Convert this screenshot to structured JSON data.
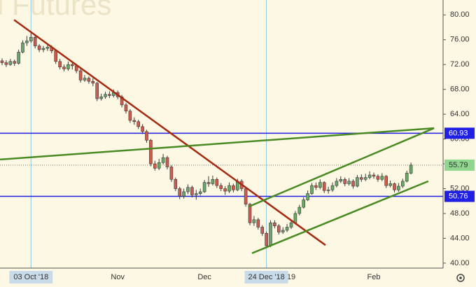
{
  "chart_data": {
    "type": "candlestick",
    "title": "l Futures",
    "categories": [
      null,
      null,
      null,
      null,
      null,
      null,
      null,
      "03 Oct '18",
      null,
      null,
      null,
      null,
      null,
      null,
      null,
      null,
      null,
      null,
      null,
      null,
      null,
      null,
      null,
      null,
      null,
      null,
      null,
      null,
      "Nov",
      null,
      null,
      null,
      null,
      null,
      null,
      null,
      null,
      null,
      null,
      null,
      null,
      null,
      null,
      null,
      null,
      null,
      null,
      null,
      null,
      "Dec",
      null,
      null,
      null,
      null,
      null,
      null,
      null,
      null,
      null,
      null,
      null,
      null,
      null,
      null,
      "24 Dec '18",
      null,
      null,
      null,
      null,
      null,
      "19",
      null,
      null,
      null,
      null,
      null,
      null,
      null,
      null,
      null,
      null,
      null,
      null,
      null,
      null,
      null,
      null,
      null,
      null,
      null,
      "Feb",
      null,
      null,
      null,
      null,
      null,
      null,
      null,
      null,
      null
    ],
    "open": [
      72.6,
      72.3,
      72.0,
      72.5,
      72.2,
      74.0,
      75.5,
      75.8,
      76.4,
      75.0,
      74.4,
      74.6,
      74.8,
      74.2,
      72.5,
      71.6,
      71.3,
      72.0,
      71.8,
      71.0,
      69.5,
      69.8,
      69.3,
      69.0,
      66.5,
      66.8,
      67.2,
      67.0,
      67.5,
      66.8,
      65.5,
      64.5,
      63.0,
      62.8,
      62.0,
      61.2,
      59.8,
      56.0,
      55.3,
      56.2,
      57.0,
      55.5,
      53.5,
      52.0,
      50.8,
      51.5,
      52.2,
      51.0,
      51.2,
      51.5,
      53.0,
      52.8,
      53.5,
      52.5,
      52.0,
      51.6,
      52.5,
      51.8,
      53.2,
      52.0,
      49.5,
      46.5,
      47.0,
      45.8,
      44.8,
      42.8,
      46.5,
      46.0,
      45.0,
      45.3,
      45.8,
      46.5,
      48.0,
      49.0,
      50.2,
      51.2,
      52.5,
      52.2,
      53.0,
      51.7,
      51.8,
      52.5,
      53.2,
      53.5,
      52.8,
      53.2,
      52.4,
      53.8,
      53.5,
      53.8,
      54.2,
      54.0,
      53.5,
      54.0,
      52.5,
      52.8,
      51.8,
      52.4,
      53.2,
      54.5
    ],
    "high": [
      73.0,
      72.7,
      72.9,
      72.8,
      74.4,
      75.9,
      76.6,
      77.3,
      76.6,
      75.3,
      75.0,
      75.4,
      75.1,
      74.4,
      72.9,
      72.0,
      72.5,
      72.4,
      72.1,
      71.3,
      70.3,
      70.1,
      69.8,
      69.2,
      67.3,
      67.6,
      67.7,
      68.0,
      67.8,
      67.1,
      65.8,
      64.8,
      63.5,
      63.1,
      62.4,
      61.5,
      60.0,
      56.5,
      56.8,
      57.6,
      57.3,
      55.8,
      53.8,
      52.3,
      52.0,
      52.7,
      52.5,
      51.8,
      52.0,
      53.4,
      54.0,
      54.1,
      53.8,
      52.9,
      52.4,
      53.0,
      52.8,
      53.6,
      53.5,
      52.2,
      49.7,
      47.6,
      47.3,
      46.1,
      45.1,
      46.9,
      46.9,
      46.3,
      45.8,
      46.3,
      47.0,
      48.4,
      49.4,
      50.6,
      51.7,
      52.9,
      53.0,
      53.5,
      53.2,
      52.3,
      53.0,
      53.7,
      54.0,
      53.8,
      53.7,
      53.5,
      54.2,
      54.3,
      54.4,
      54.8,
      54.6,
      54.3,
      54.5,
      54.2,
      53.3,
      53.0,
      52.9,
      53.6,
      54.9,
      56.2
    ],
    "low": [
      71.9,
      71.6,
      71.8,
      71.8,
      72.0,
      73.8,
      75.0,
      75.5,
      74.6,
      74.0,
      74.0,
      74.2,
      73.8,
      72.1,
      71.2,
      70.9,
      71.0,
      71.2,
      70.6,
      69.1,
      69.2,
      68.9,
      68.5,
      66.1,
      66.2,
      66.5,
      66.6,
      66.7,
      66.4,
      65.1,
      64.1,
      62.6,
      62.3,
      61.6,
      60.8,
      59.4,
      55.6,
      54.9,
      55.0,
      55.9,
      55.1,
      53.1,
      51.6,
      50.3,
      50.4,
      51.1,
      50.6,
      50.2,
      50.9,
      51.3,
      52.3,
      52.5,
      52.1,
      51.6,
      51.0,
      51.3,
      51.4,
      51.6,
      51.6,
      49.1,
      46.1,
      46.0,
      45.4,
      44.4,
      42.4,
      42.6,
      45.6,
      44.6,
      44.7,
      45.0,
      45.5,
      46.3,
      47.7,
      48.8,
      50.0,
      51.0,
      51.8,
      51.9,
      51.3,
      51.2,
      51.5,
      52.2,
      52.9,
      52.4,
      52.5,
      52.0,
      52.2,
      53.1,
      53.2,
      53.5,
      53.6,
      53.1,
      53.2,
      52.1,
      52.2,
      51.4,
      51.5,
      52.1,
      53.0,
      54.3
    ],
    "close": [
      72.3,
      72.0,
      72.5,
      72.2,
      74.0,
      75.5,
      75.8,
      76.4,
      75.0,
      74.4,
      74.6,
      74.8,
      74.2,
      72.5,
      71.6,
      71.3,
      72.0,
      71.8,
      71.0,
      69.5,
      69.8,
      69.3,
      69.0,
      66.5,
      66.8,
      67.2,
      67.0,
      67.5,
      66.8,
      65.5,
      64.5,
      63.0,
      62.8,
      62.0,
      61.2,
      59.8,
      56.0,
      55.3,
      56.2,
      57.0,
      55.5,
      53.5,
      52.0,
      50.8,
      51.5,
      52.2,
      51.0,
      51.2,
      51.5,
      53.0,
      52.8,
      53.5,
      52.5,
      52.0,
      51.6,
      52.5,
      51.8,
      53.2,
      52.0,
      49.5,
      46.5,
      47.0,
      45.8,
      44.8,
      42.8,
      46.5,
      46.0,
      45.0,
      45.3,
      45.8,
      46.5,
      48.0,
      49.0,
      50.2,
      51.2,
      52.5,
      52.2,
      53.0,
      51.7,
      51.8,
      52.5,
      53.2,
      53.5,
      52.8,
      53.2,
      52.4,
      53.8,
      53.5,
      53.8,
      54.2,
      54.0,
      53.5,
      54.0,
      52.5,
      52.8,
      51.8,
      52.4,
      53.2,
      54.5,
      55.79
    ],
    "up_color": "#6aa86a",
    "down_color": "#cf5a4e",
    "wick_color": "#3a3a3a",
    "ylim": [
      39.2,
      82.4
    ],
    "yticks": [
      {
        "value": 40,
        "label": "40.00"
      },
      {
        "value": 44,
        "label": "44.00"
      },
      {
        "value": 48,
        "label": "48.00"
      },
      {
        "value": 52,
        "label": "52.00"
      },
      {
        "value": 56,
        "label": "56.00"
      },
      {
        "value": 60,
        "label": "60.00"
      },
      {
        "value": 64,
        "label": "64.00"
      },
      {
        "value": 68,
        "label": "68.00"
      },
      {
        "value": 72,
        "label": "72.00"
      },
      {
        "value": 76,
        "label": "76.00"
      },
      {
        "value": 80,
        "label": "80.00"
      }
    ],
    "levels": [
      {
        "value": 60.93,
        "color": "#1f1fe6"
      },
      {
        "value": 50.76,
        "color": "#1f1fe6"
      }
    ],
    "last_price_color": "#8fd68f",
    "vlines": [
      7,
      64
    ],
    "trendlines": [
      {
        "color": "#a52a12",
        "points": [
          [
            2.9,
            79.2
          ],
          [
            78.3,
            42.9
          ]
        ]
      },
      {
        "color": "#4a8a22",
        "points": [
          [
            -0.5,
            56.7
          ],
          [
            104.6,
            61.75
          ]
        ]
      },
      {
        "color": "#4a8a22",
        "points": [
          [
            59.7,
            49.1
          ],
          [
            104.6,
            61.75
          ]
        ]
      },
      {
        "color": "#4a8a22",
        "points": [
          [
            60.5,
            41.6
          ],
          [
            103.2,
            53.2
          ]
        ]
      }
    ]
  }
}
